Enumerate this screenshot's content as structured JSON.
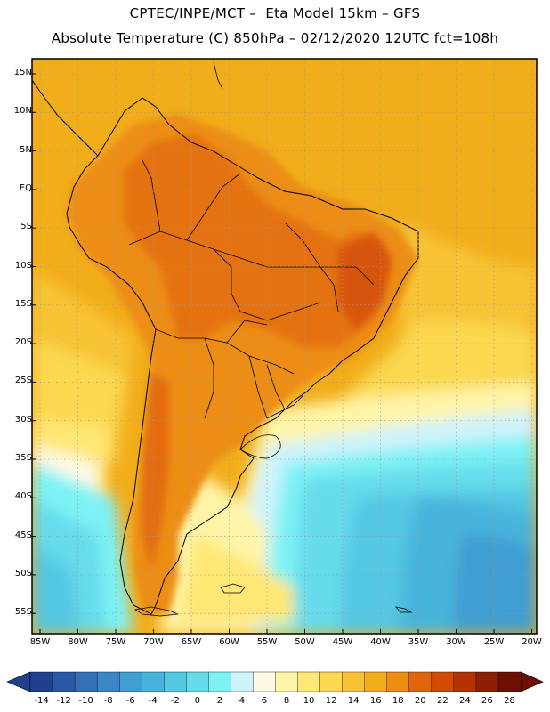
{
  "header": {
    "line1": "CPTEC/INPE/MCT –  Eta Model 15km – GFS",
    "line2": "Absolute Temperature (C) 850hPa – 02/12/2020 12UTC fct=108h"
  },
  "map": {
    "lat_ticks": [
      "15N",
      "10N",
      "5N",
      "EQ",
      "5S",
      "10S",
      "15S",
      "20S",
      "25S",
      "30S",
      "35S",
      "40S",
      "45S",
      "50S",
      "55S"
    ],
    "lon_ticks": [
      "85W",
      "80W",
      "75W",
      "70W",
      "65W",
      "60W",
      "55W",
      "50W",
      "45W",
      "40W",
      "35W",
      "30W",
      "25W",
      "20W"
    ]
  },
  "colorbar": {
    "labels": [
      "-14",
      "-12",
      "-10",
      "-8",
      "-6",
      "-4",
      "-2",
      "0",
      "2",
      "4",
      "6",
      "8",
      "10",
      "12",
      "14",
      "16",
      "18",
      "20",
      "22",
      "24",
      "26",
      "28"
    ],
    "colors": [
      "#1f3f8f",
      "#2a58a8",
      "#3470b8",
      "#3b86c6",
      "#3f9ed2",
      "#46b4dc",
      "#55c8e4",
      "#66dceb",
      "#7df2f5",
      "#cff3fb",
      "#fef9e4",
      "#fff4a8",
      "#ffe775",
      "#fbd850",
      "#f7c335",
      "#f2ad1a",
      "#ec8d12",
      "#e2650b",
      "#d14a08",
      "#b33305",
      "#8f1f03",
      "#6d1004"
    ]
  }
}
